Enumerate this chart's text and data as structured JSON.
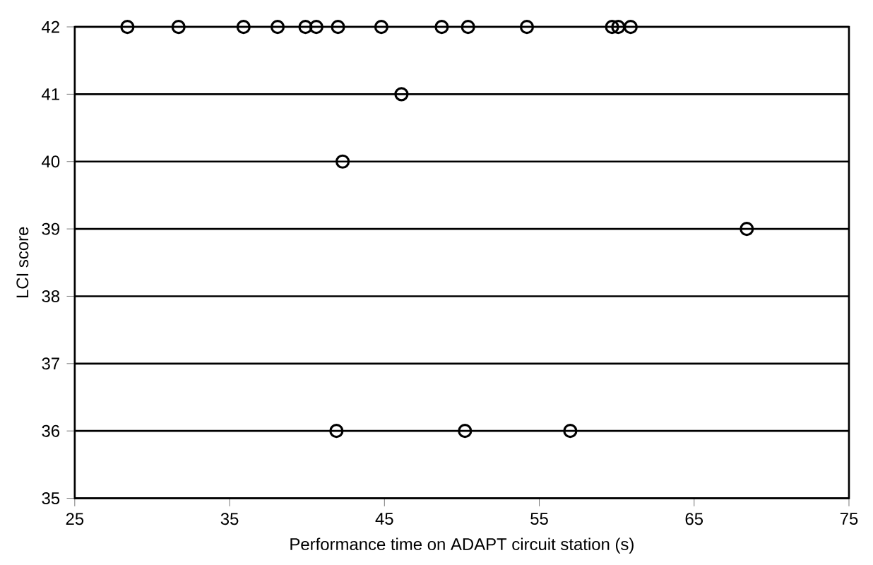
{
  "chart_data": {
    "type": "scatter",
    "xlabel": "Performance time on ADAPT circuit station (s)",
    "ylabel": "LCI score",
    "x": [
      28.4,
      31.7,
      35.9,
      38.1,
      39.9,
      40.6,
      42.0,
      44.8,
      48.7,
      50.4,
      54.2,
      59.7,
      60.1,
      60.9,
      46.1,
      42.3,
      68.4,
      41.9,
      50.2,
      57.0
    ],
    "values": [
      42,
      42,
      42,
      42,
      42,
      42,
      42,
      42,
      42,
      42,
      42,
      42,
      42,
      42,
      41,
      40,
      39,
      36,
      36,
      36
    ],
    "color": "#000000",
    "marker": "circle",
    "grid": "y",
    "xlim": [
      25,
      75
    ],
    "xticks": [
      25,
      35,
      45,
      55,
      65,
      75
    ],
    "ylim": [
      35,
      42
    ],
    "yticks": [
      35,
      36,
      37,
      38,
      39,
      40,
      41,
      42
    ]
  }
}
